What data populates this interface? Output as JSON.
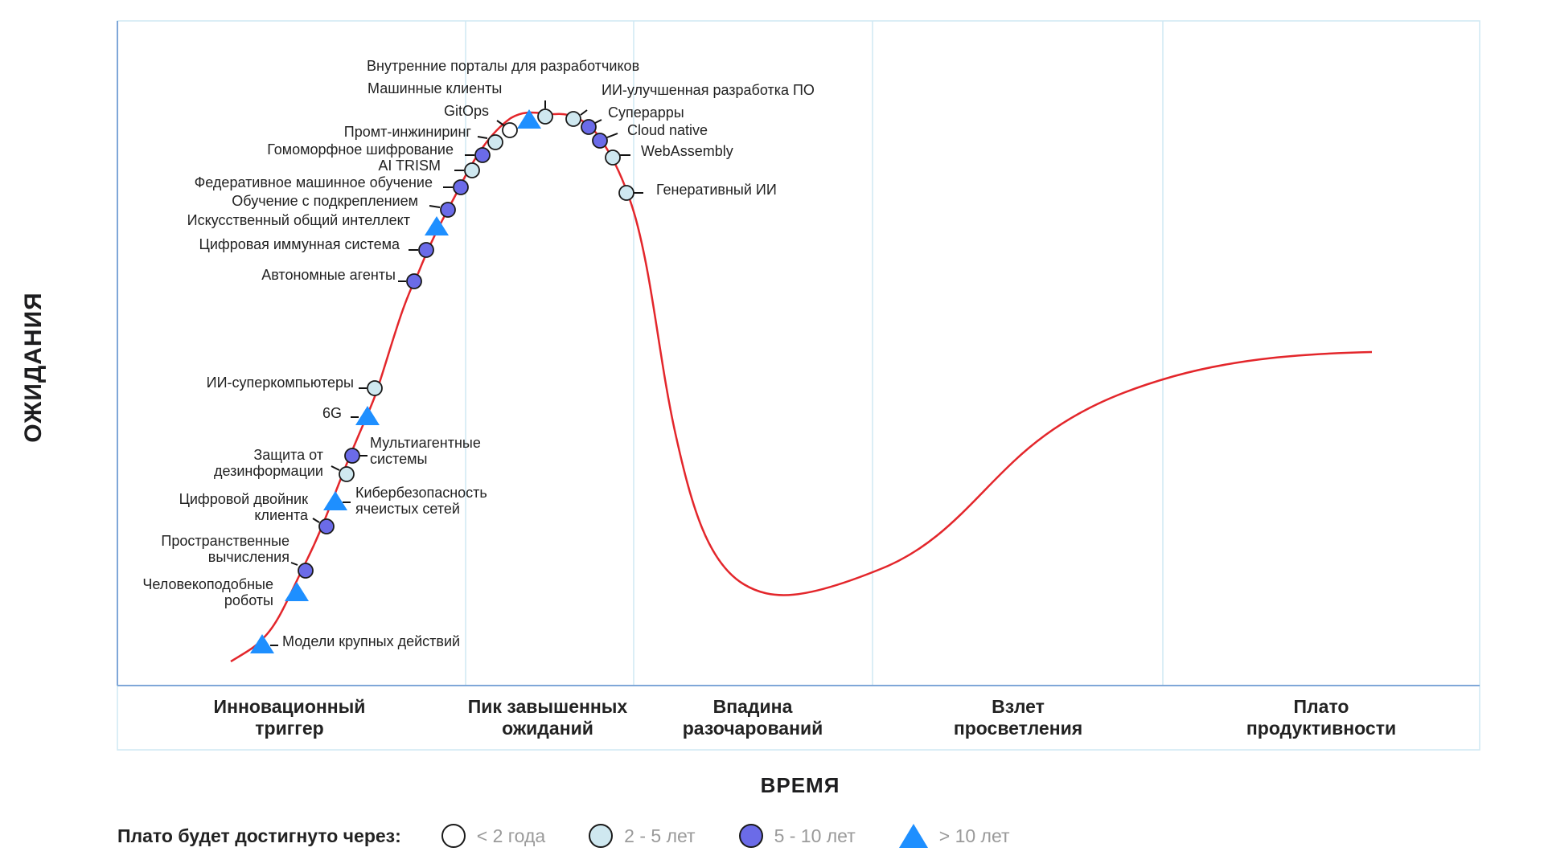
{
  "axes": {
    "y_label": "ОЖИДАНИЯ",
    "x_label": "ВРЕМЯ"
  },
  "phases": [
    {
      "label": "Инновационный\nтриггер"
    },
    {
      "label": "Пик завышенных\nожиданий"
    },
    {
      "label": "Впадина\nразочарований"
    },
    {
      "label": "Взлет\nпросветления"
    },
    {
      "label": "Плато\nпродуктивности"
    }
  ],
  "legend": {
    "title": "Плато будет достигнуто через:",
    "items": [
      {
        "label": "< 2 года",
        "shape": "circle",
        "color": "#ffffff"
      },
      {
        "label": "2 - 5 лет",
        "shape": "circle",
        "color": "#cfe8f0"
      },
      {
        "label": "5 - 10 лет",
        "shape": "circle",
        "color": "#6b6be8"
      },
      {
        "label": "> 10 лет",
        "shape": "triangle",
        "color": "#1e8fff"
      }
    ]
  },
  "colors": {
    "curve": "#e3262b",
    "frame": "#cfe8f3",
    "axis": "#7fa7d8"
  },
  "technologies": [
    {
      "name": "Внутренние порталы для разработчиков",
      "category": "2 - 5 лет"
    },
    {
      "name": "Машинные клиенты",
      "category": "> 10 лет"
    },
    {
      "name": "GitOps",
      "category": "< 2 года"
    },
    {
      "name": "ИИ-улучшенная разработка ПО",
      "category": "2 - 5 лет"
    },
    {
      "name": "Суперappы",
      "category": "5 - 10 лет"
    },
    {
      "name": "Cloud native",
      "category": "5 - 10 лет"
    },
    {
      "name": "WebAssembly",
      "category": "2 - 5 лет"
    },
    {
      "name": "Генеративный ИИ",
      "category": "2 - 5 лет"
    },
    {
      "name": "Промт-инжиниринг",
      "category": "2 - 5 лет"
    },
    {
      "name": "Гомоморфное шифрование",
      "category": "5 - 10 лет"
    },
    {
      "name": "AI TRISM",
      "category": "2 - 5 лет"
    },
    {
      "name": "Федеративное машинное обучение",
      "category": "5 - 10 лет"
    },
    {
      "name": "Обучение с подкреплением",
      "category": "5 - 10 лет"
    },
    {
      "name": "Искусственный общий интеллект",
      "category": "> 10 лет"
    },
    {
      "name": "Цифровая иммунная система",
      "category": "5 - 10 лет"
    },
    {
      "name": "Автономные агенты",
      "category": "5 - 10 лет"
    },
    {
      "name": "ИИ-суперкомпьютеры",
      "category": "2 - 5 лет"
    },
    {
      "name": "6G",
      "category": "> 10 лет"
    },
    {
      "name": "Мультиагентные\nсистемы",
      "category": "5 - 10 лет"
    },
    {
      "name": "Защита от\nдезинформации",
      "category": "2 - 5 лет"
    },
    {
      "name": "Кибербезопасность\nячеистых сетей",
      "category": "> 10 лет"
    },
    {
      "name": "Цифровой двойник\nклиента",
      "category": "5 - 10 лет"
    },
    {
      "name": "Пространственные\nвычисления",
      "category": "5 - 10 лет"
    },
    {
      "name": "Человекоподобные\nроботы",
      "category": "> 10 лет"
    },
    {
      "name": "Модели крупных действий",
      "category": "> 10 лет"
    }
  ]
}
